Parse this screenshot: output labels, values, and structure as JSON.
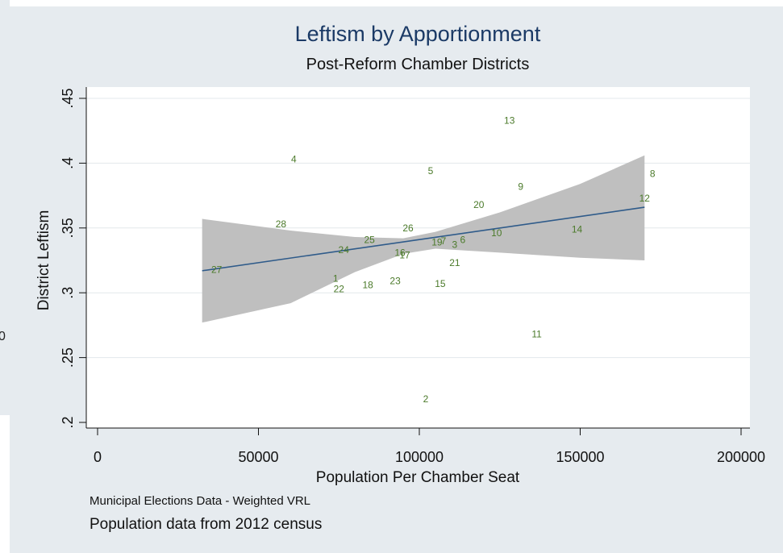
{
  "background_figure": {
    "partial_label": "0"
  },
  "chart_data": {
    "type": "scatter",
    "title": "Leftism by Apportionment",
    "subtitle": "Post-Reform Chamber Districts",
    "xlabel": "Population Per Chamber Seat",
    "ylabel": "District Leftism",
    "xlim": [
      0,
      200000
    ],
    "ylim": [
      0.2,
      0.45
    ],
    "xticks": [
      0,
      50000,
      100000,
      150000,
      200000
    ],
    "xtick_labels": [
      "0",
      "50000",
      "100000",
      "150000",
      "200000"
    ],
    "yticks": [
      0.2,
      0.25,
      0.3,
      0.35,
      0.4,
      0.45
    ],
    "ytick_labels": [
      ".2",
      ".25",
      ".3",
      ".35",
      ".4",
      ".45"
    ],
    "grid": "horizontal",
    "notes": [
      "Municipal Elections Data - Weighted VRL",
      "Population data from 2012 census"
    ],
    "colors": {
      "panel": "#e6ebef",
      "plot": "#ffffff",
      "title": "#1b3a66",
      "fit_line": "#2f5b8a",
      "ci_band": "#bfbfbf",
      "labels": "#4b7a2a"
    },
    "points": [
      {
        "label": "1",
        "x": 74000,
        "y": 0.311
      },
      {
        "label": "2",
        "x": 102000,
        "y": 0.218
      },
      {
        "label": "3",
        "x": 111000,
        "y": 0.337
      },
      {
        "label": "4",
        "x": 61000,
        "y": 0.403
      },
      {
        "label": "5",
        "x": 103500,
        "y": 0.394
      },
      {
        "label": "6",
        "x": 113500,
        "y": 0.341
      },
      {
        "label": "7",
        "x": 107500,
        "y": 0.34
      },
      {
        "label": "8",
        "x": 172500,
        "y": 0.392
      },
      {
        "label": "9",
        "x": 131500,
        "y": 0.382
      },
      {
        "label": "10",
        "x": 124000,
        "y": 0.346
      },
      {
        "label": "11",
        "x": 136500,
        "y": 0.268
      },
      {
        "label": "12",
        "x": 170000,
        "y": 0.373
      },
      {
        "label": "13",
        "x": 128000,
        "y": 0.433
      },
      {
        "label": "14",
        "x": 149000,
        "y": 0.349
      },
      {
        "label": "15",
        "x": 106500,
        "y": 0.307
      },
      {
        "label": "16",
        "x": 94000,
        "y": 0.331
      },
      {
        "label": "17",
        "x": 95500,
        "y": 0.329
      },
      {
        "label": "18",
        "x": 84000,
        "y": 0.306
      },
      {
        "label": "19",
        "x": 105500,
        "y": 0.339
      },
      {
        "label": "20",
        "x": 118500,
        "y": 0.368
      },
      {
        "label": "21",
        "x": 111000,
        "y": 0.323
      },
      {
        "label": "22",
        "x": 75000,
        "y": 0.303
      },
      {
        "label": "23",
        "x": 92500,
        "y": 0.309
      },
      {
        "label": "24",
        "x": 76500,
        "y": 0.333
      },
      {
        "label": "25",
        "x": 84500,
        "y": 0.341
      },
      {
        "label": "26",
        "x": 96500,
        "y": 0.35
      },
      {
        "label": "27",
        "x": 37000,
        "y": 0.318
      },
      {
        "label": "28",
        "x": 57000,
        "y": 0.353
      }
    ],
    "fit_line": {
      "x": [
        32500,
        170000
      ],
      "y": [
        0.317,
        0.366
      ]
    },
    "ci_band": {
      "x": [
        32500,
        60000,
        80000,
        95000,
        105000,
        125000,
        150000,
        170000
      ],
      "upper": [
        0.357,
        0.348,
        0.343,
        0.342,
        0.347,
        0.362,
        0.384,
        0.406
      ],
      "lower": [
        0.277,
        0.292,
        0.316,
        0.33,
        0.334,
        0.331,
        0.327,
        0.325
      ]
    }
  }
}
